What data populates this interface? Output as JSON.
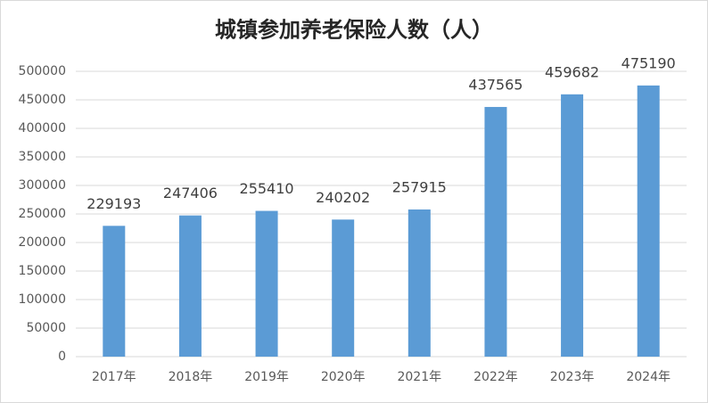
{
  "chart_data": {
    "type": "bar",
    "title": "城镇参加养老保险人数（人）",
    "categories": [
      "2017年",
      "2018年",
      "2019年",
      "2020年",
      "2021年",
      "2022年",
      "2023年",
      "2024年"
    ],
    "values": [
      229193,
      247406,
      255410,
      240202,
      257915,
      437565,
      459682,
      475190
    ],
    "color": "#5b9bd5",
    "ylim": [
      0,
      500000
    ],
    "yticks": [
      0,
      50000,
      100000,
      150000,
      200000,
      250000,
      300000,
      350000,
      400000,
      450000,
      500000
    ],
    "grid": true
  }
}
